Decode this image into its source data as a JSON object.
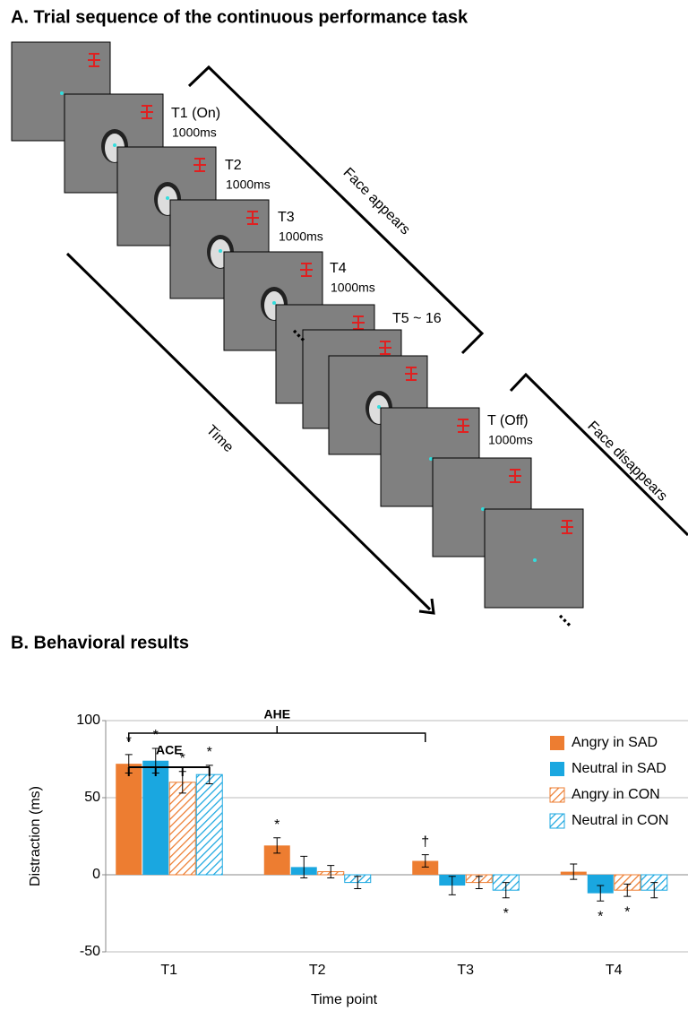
{
  "panel_a": {
    "title": "A. Trial sequence of the continuous performance task",
    "frames": [
      {
        "label": "T1 (On)",
        "duration": "1000ms"
      },
      {
        "label": "T2",
        "duration": "1000ms"
      },
      {
        "label": "T3",
        "duration": "1000ms"
      },
      {
        "label": "T4",
        "duration": "1000ms"
      },
      {
        "label": "T5 ~ 16"
      },
      {
        "label": "T (Off)",
        "duration": "1000ms"
      }
    ],
    "face_appears": "Face appears",
    "face_disappears": "Face disappears",
    "time": "Time"
  },
  "chart_data": {
    "type": "bar",
    "title": "B. Behavioral results",
    "categories": [
      "T1",
      "T2",
      "T3",
      "T4"
    ],
    "series": [
      {
        "name": "Angry in SAD",
        "color": "#ed7d31",
        "hatched": false,
        "values": [
          72,
          19,
          9,
          2
        ],
        "errors": [
          6,
          5,
          4,
          5
        ],
        "significance": [
          "*",
          "*",
          "†",
          null
        ]
      },
      {
        "name": "Neutral in SAD",
        "color": "#1aa7e0",
        "hatched": false,
        "values": [
          74,
          5,
          -7,
          -12
        ],
        "errors": [
          8,
          7,
          6,
          5
        ],
        "significance": [
          "*",
          null,
          null,
          "*"
        ]
      },
      {
        "name": "Angry in CON",
        "color": "#ed7d31",
        "hatched": true,
        "values": [
          60,
          2,
          -5,
          -10
        ],
        "errors": [
          7,
          4,
          4,
          4
        ],
        "significance": [
          "*",
          null,
          null,
          "*"
        ]
      },
      {
        "name": "Neutral in CON",
        "color": "#1aa7e0",
        "hatched": true,
        "values": [
          65,
          -5,
          -10,
          -10
        ],
        "errors": [
          6,
          4,
          5,
          5
        ],
        "significance": [
          "*",
          null,
          "*",
          null
        ]
      }
    ],
    "ylim": [
      -50,
      100
    ],
    "yticks": [
      -50,
      0,
      50,
      100
    ],
    "grid": true,
    "xlabel": "Time point",
    "ylabel": "Distraction (ms)",
    "annotations": [
      "AHE",
      "ACE"
    ],
    "legend": "upper right"
  }
}
